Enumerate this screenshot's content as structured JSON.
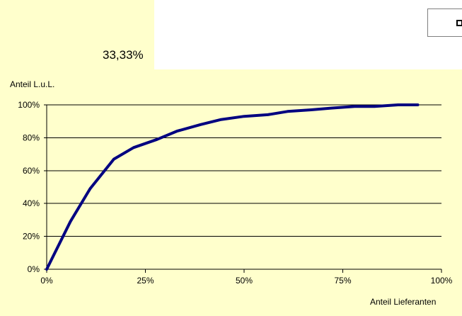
{
  "top_value": "33,33%",
  "legend": {
    "marker-icon": "square-marker-icon"
  },
  "chart_data": {
    "type": "line",
    "xlabel": "Anteil Lieferanten",
    "ylabel": "Anteil L.u.L.",
    "xlim": [
      0,
      100
    ],
    "ylim": [
      0,
      100
    ],
    "x_ticks": [
      "0%",
      "25%",
      "50%",
      "75%",
      "100%"
    ],
    "y_ticks": [
      "0%",
      "20%",
      "40%",
      "60%",
      "80%",
      "100%"
    ],
    "grid": "horizontal",
    "series": [
      {
        "color": "#000080",
        "x": [
          0,
          6,
          11,
          17,
          22,
          28,
          33,
          39,
          44,
          50,
          56,
          61,
          67,
          72,
          78,
          83,
          89,
          94
        ],
        "y": [
          0,
          29,
          49,
          67,
          74,
          79,
          84,
          88,
          91,
          93,
          94,
          96,
          97,
          98,
          99,
          99,
          100,
          100
        ]
      }
    ]
  }
}
